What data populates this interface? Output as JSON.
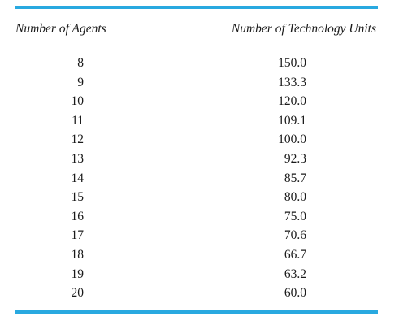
{
  "table": {
    "headers": {
      "agents": "Number of Agents",
      "units": "Number of Technology Units"
    },
    "rows": [
      {
        "agents": "8",
        "units": "150.0"
      },
      {
        "agents": "9",
        "units": "133.3"
      },
      {
        "agents": "10",
        "units": "120.0"
      },
      {
        "agents": "11",
        "units": "109.1"
      },
      {
        "agents": "12",
        "units": "100.0"
      },
      {
        "agents": "13",
        "units": "92.3"
      },
      {
        "agents": "14",
        "units": "85.7"
      },
      {
        "agents": "15",
        "units": "80.0"
      },
      {
        "agents": "16",
        "units": "75.0"
      },
      {
        "agents": "17",
        "units": "70.6"
      },
      {
        "agents": "18",
        "units": "66.7"
      },
      {
        "agents": "19",
        "units": "63.2"
      },
      {
        "agents": "20",
        "units": "60.0"
      }
    ]
  },
  "colors": {
    "rule": "#29a9e0",
    "text": "#1a1a1a"
  }
}
